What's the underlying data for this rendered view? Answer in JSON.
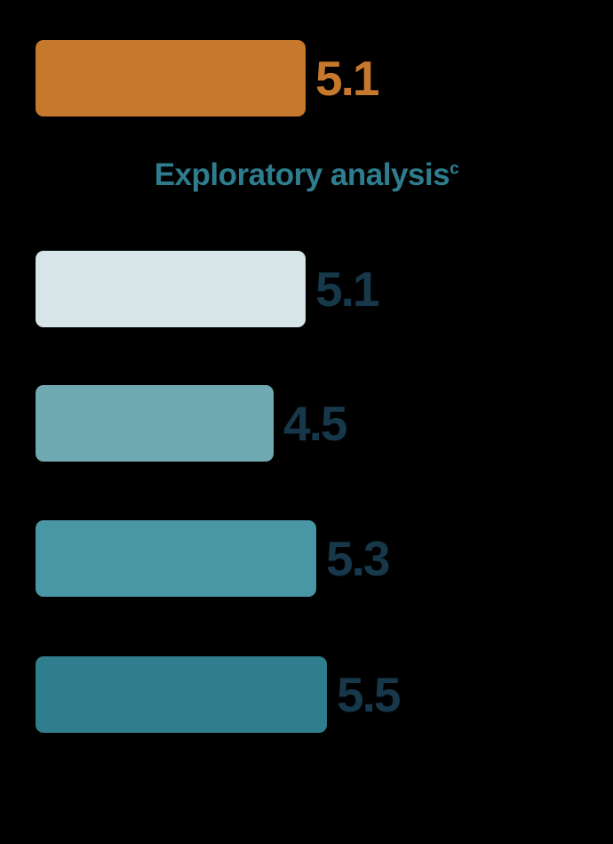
{
  "figure": {
    "background_color": "#000000"
  },
  "chart_data": {
    "type": "bar",
    "orientation": "horizontal",
    "xlim": [
      0,
      5.5
    ],
    "grid": false,
    "legend": false,
    "section_title": "Exploratory analysis",
    "section_title_footnote": "c",
    "section_title_color": "#2E7D8E",
    "value_label_color": "#16384A",
    "series": [
      {
        "group": "primary",
        "value": 5.1,
        "label": "5.1",
        "bar_color": "#C6782D",
        "label_color": "#C6782D"
      },
      {
        "group": "exploratory",
        "value": 5.1,
        "label": "5.1",
        "bar_color": "#D7E5E8",
        "label_color": "#16384A"
      },
      {
        "group": "exploratory",
        "value": 4.5,
        "label": "4.5",
        "bar_color": "#6FAAB3",
        "label_color": "#16384A"
      },
      {
        "group": "exploratory",
        "value": 5.3,
        "label": "5.3",
        "bar_color": "#4997A5",
        "label_color": "#16384A"
      },
      {
        "group": "exploratory",
        "value": 5.5,
        "label": "5.5",
        "bar_color": "#2F7E8D",
        "label_color": "#16384A"
      }
    ]
  }
}
